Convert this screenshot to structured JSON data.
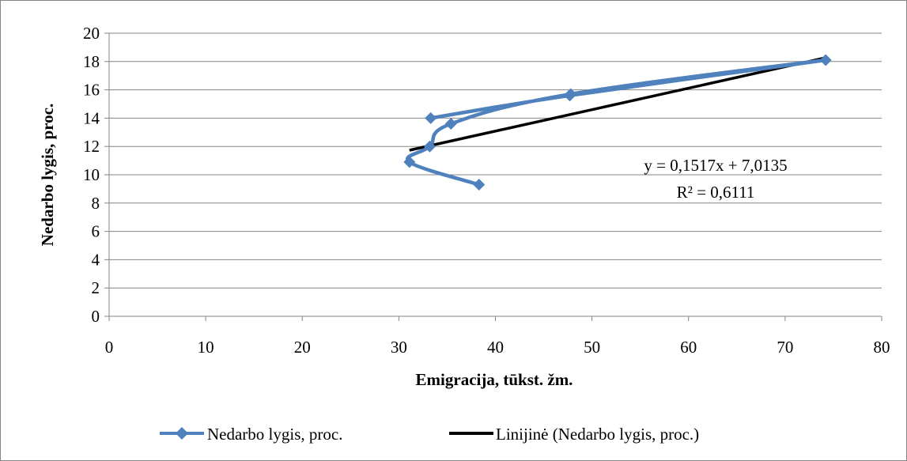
{
  "chart_data": {
    "type": "scatter",
    "xlabel": "Emigracija, tūkst. žm.",
    "ylabel": "Nedarbo lygis, proc.",
    "xlim": [
      0,
      80
    ],
    "ylim": [
      0,
      20
    ],
    "x_ticks": [
      0,
      10,
      20,
      30,
      40,
      50,
      60,
      70,
      80
    ],
    "y_ticks": [
      0,
      2,
      4,
      6,
      8,
      10,
      12,
      14,
      16,
      18,
      20
    ],
    "grid": "horizontal",
    "legend_position": "bottom",
    "series": [
      {
        "name": "Nedarbo lygis, proc.",
        "color": "#4f81bd",
        "marker": "diamond",
        "lines": "smoothed",
        "points": [
          {
            "x": 38.3,
            "y": 9.3
          },
          {
            "x": 31.1,
            "y": 10.9
          },
          {
            "x": 33.2,
            "y": 12.0
          },
          {
            "x": 35.4,
            "y": 13.6
          },
          {
            "x": 47.8,
            "y": 15.7
          },
          {
            "x": 74.2,
            "y": 18.1
          },
          {
            "x": 47.7,
            "y": 15.6
          },
          {
            "x": 33.3,
            "y": 14.0
          }
        ]
      }
    ],
    "trendline": {
      "name": "Linijinė (Nedarbo lygis, proc.)",
      "color": "#000000",
      "slope": 0.1517,
      "intercept": 7.0135,
      "x_range": [
        31.1,
        74.2
      ],
      "equation": "y = 0,1517x + 7,0135",
      "r_squared": "R² = 0,6111"
    }
  }
}
